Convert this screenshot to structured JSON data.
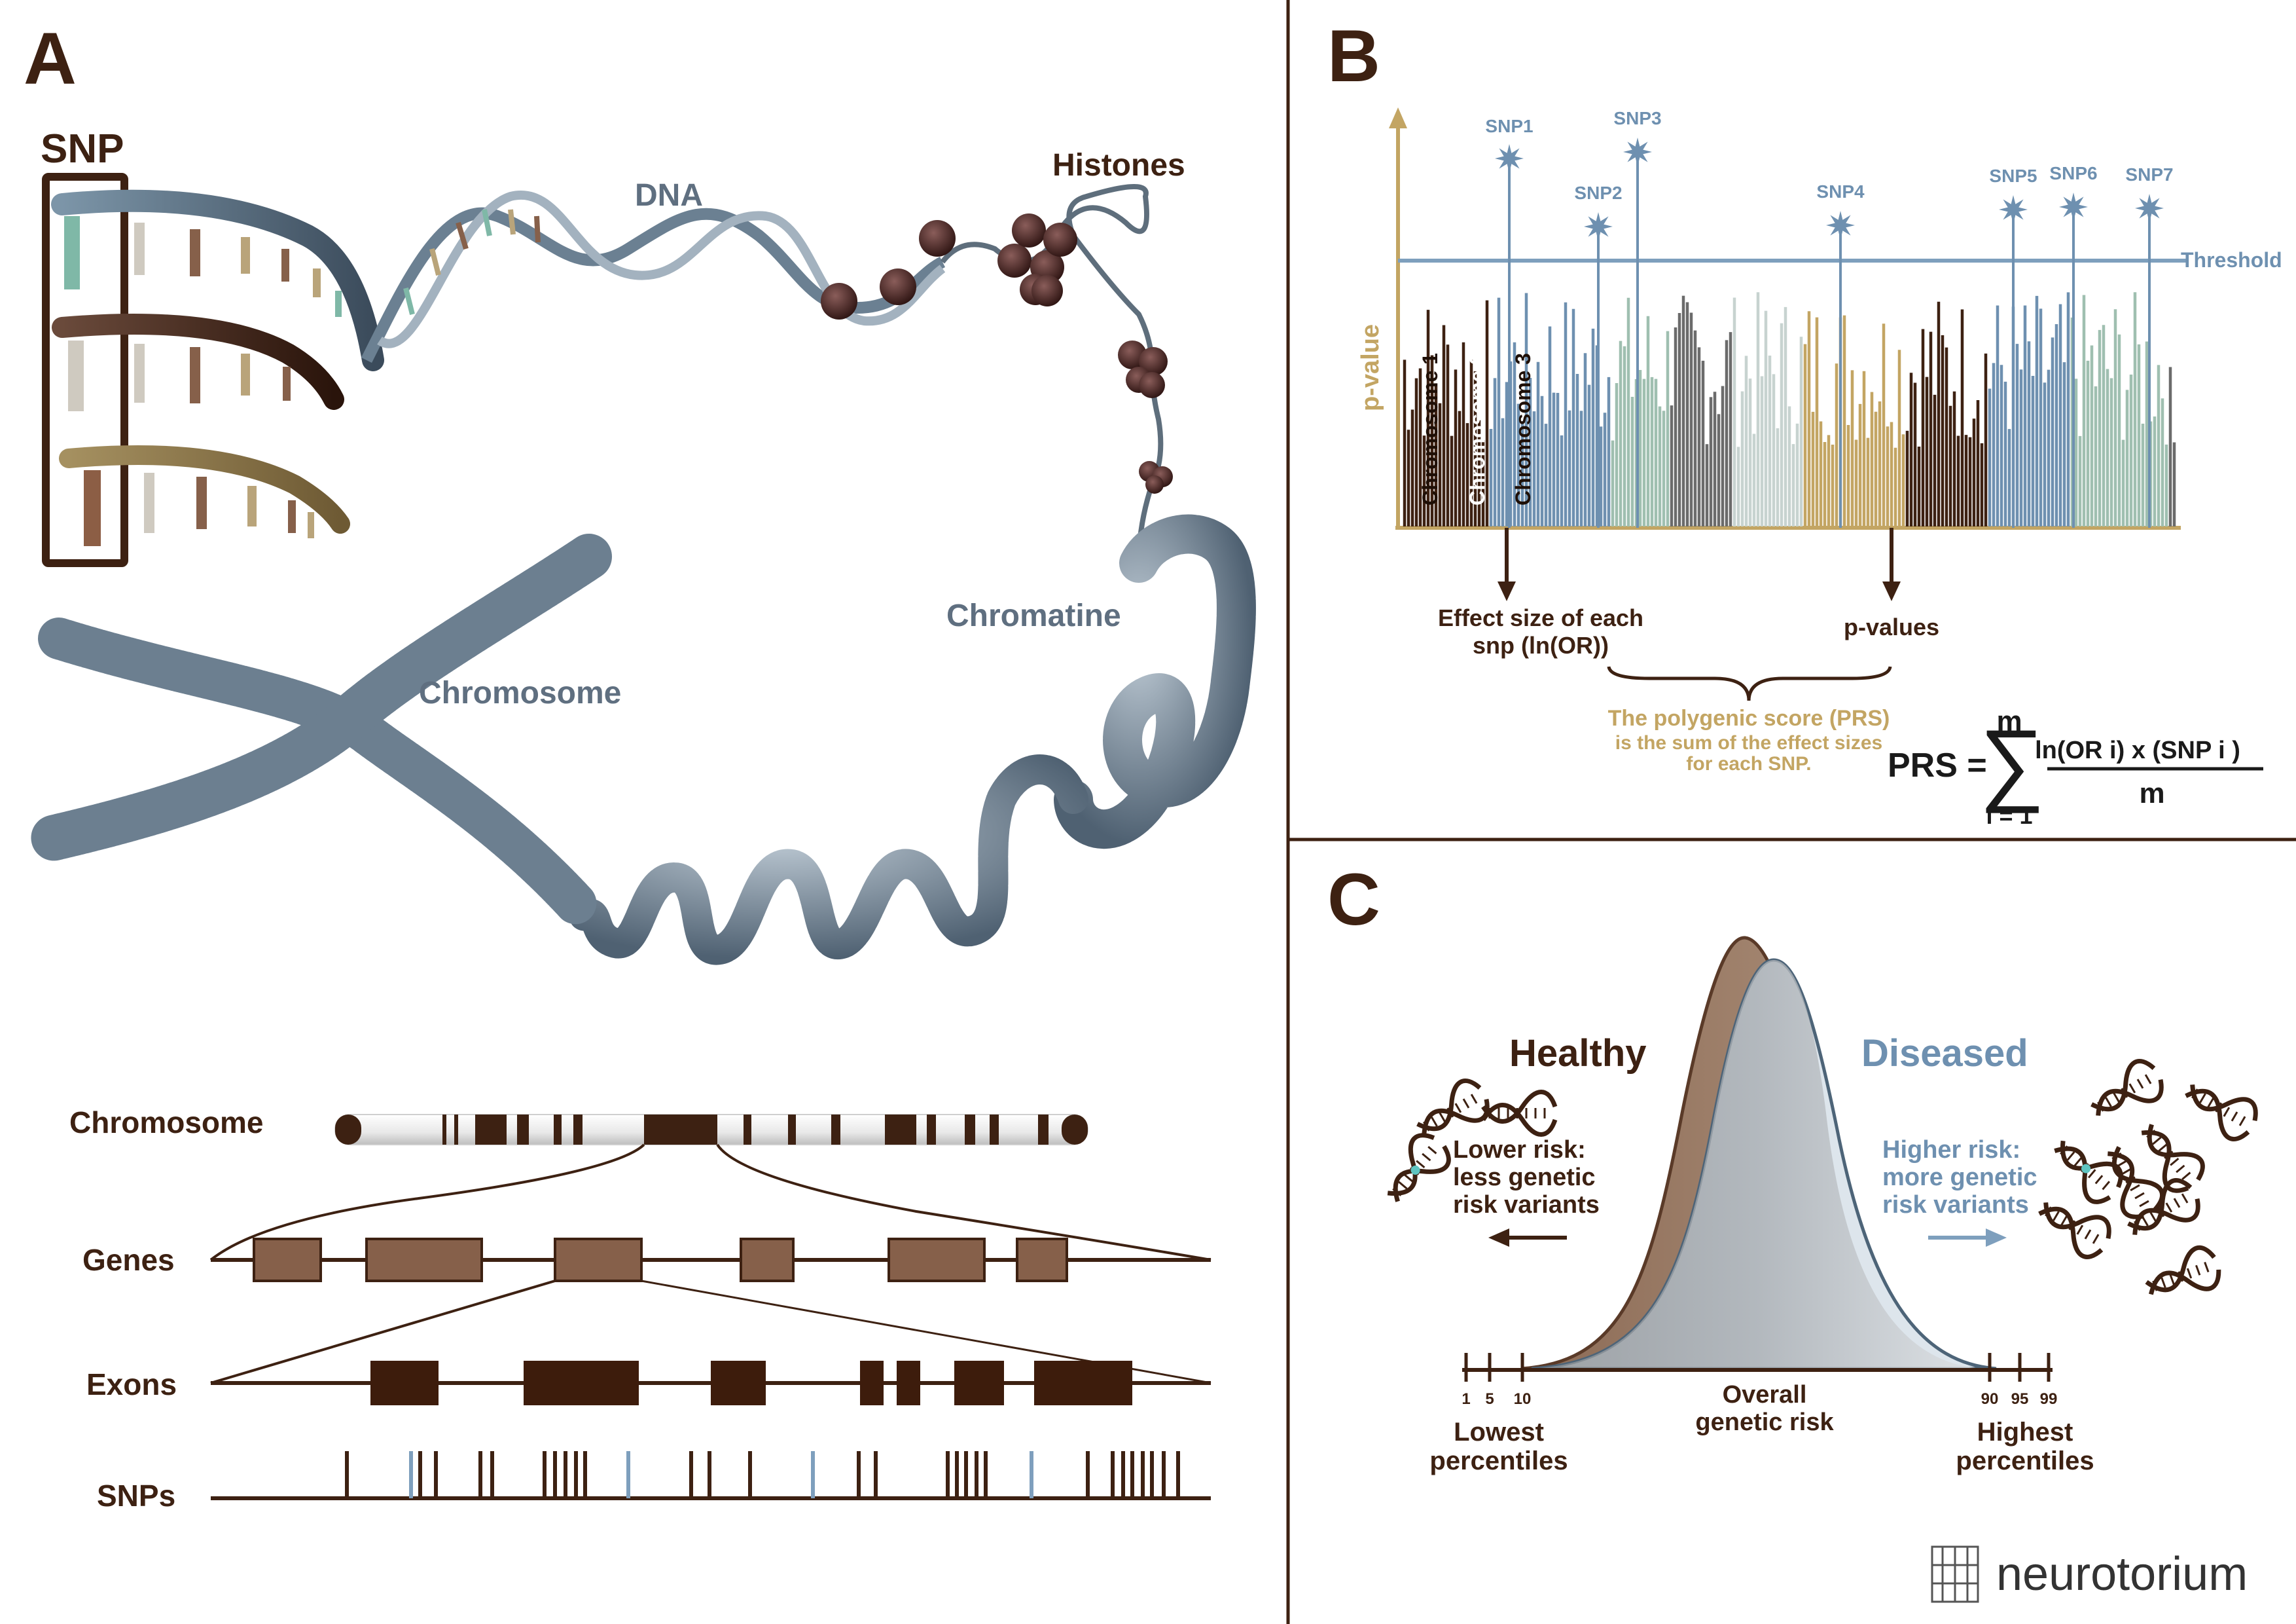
{
  "panel_a": {
    "letter": "A",
    "snp_label": "SNP",
    "dna_label": "DNA",
    "histones_label": "Histones",
    "chromatine_label": "Chromatine",
    "chromosome_label": "Chromosome",
    "tracks": {
      "chromosome": "Chromosome",
      "genes": "Genes",
      "exons": "Exons",
      "snps": "SNPs"
    }
  },
  "panel_b": {
    "letter": "B",
    "y_axis_label": "p-value",
    "threshold_label": "Threshold",
    "chromosome_labels": [
      "Chromosome 1",
      "Chromosome 2",
      "Chromosome 3"
    ],
    "snp_labels": [
      "SNP1",
      "SNP2",
      "SNP3",
      "SNP4",
      "SNP5",
      "SNP6",
      "SNP7"
    ],
    "effect_size_line1": "Effect size of each",
    "effect_size_line2": "snp (ln(OR))",
    "pvalues_label": "p-values",
    "prs_title": "The polygenic score (PRS)",
    "prs_desc_line1": "is the sum of the effect sizes",
    "prs_desc_line2": "for each SNP.",
    "formula": {
      "lhs": "PRS =",
      "sum_top": "m",
      "sum_bottom": "i = 1",
      "numerator": "ln(OR i) x (SNP i )",
      "denominator": "m"
    }
  },
  "panel_c": {
    "letter": "C",
    "healthy_label": "Healthy",
    "diseased_label": "Diseased",
    "lower_risk": [
      "Lower risk:",
      "less genetic",
      "risk variants"
    ],
    "higher_risk": [
      "Higher risk:",
      "more genetic",
      "risk variants"
    ],
    "overall_risk": [
      "Overall",
      "genetic risk"
    ],
    "lowest": [
      "Lowest",
      "percentiles"
    ],
    "highest": [
      "Highest",
      "percentiles"
    ],
    "left_ticks": [
      "1",
      "5",
      "10"
    ],
    "right_ticks": [
      "90",
      "95",
      "99"
    ]
  },
  "brand": {
    "name": "neurotorium"
  },
  "colors": {
    "brown": "#3d2112",
    "blue": "#6e90b0",
    "gold": "#c3a563",
    "grey": "#5f6f80",
    "tan": "#86604a"
  }
}
